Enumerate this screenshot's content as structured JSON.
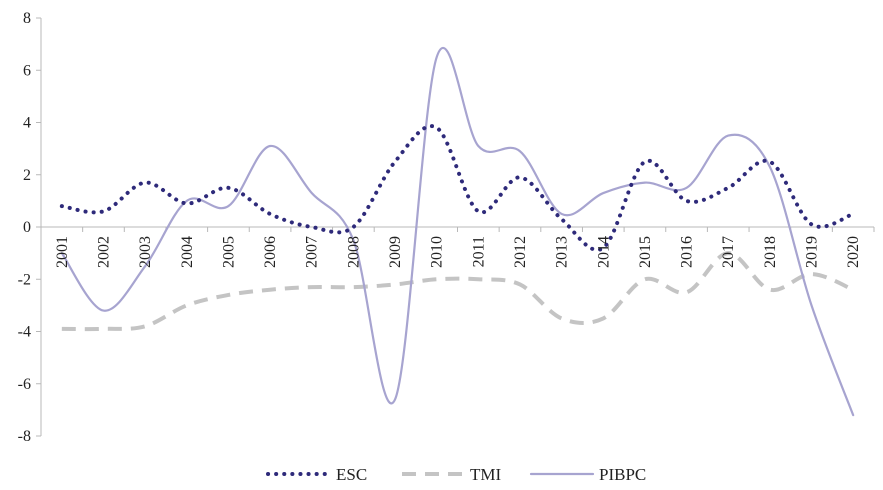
{
  "chart_data": {
    "type": "line",
    "categories": [
      "2001",
      "2002",
      "2003",
      "2004",
      "2005",
      "2006",
      "2007",
      "2008",
      "2009",
      "2010",
      "2011",
      "2012",
      "2013",
      "2014",
      "2015",
      "2016",
      "2017",
      "2018",
      "2019",
      "2020"
    ],
    "ylim": [
      -8,
      8
    ],
    "yticks": [
      -8,
      -6,
      -4,
      -2,
      0,
      2,
      4,
      6,
      8
    ],
    "grid": false,
    "legend_position": "bottom",
    "series": [
      {
        "name": "ESC",
        "style": "dotted",
        "color": "#2e2a7a",
        "values": [
          0.8,
          0.6,
          1.7,
          0.9,
          1.5,
          0.5,
          0.0,
          0.0,
          2.5,
          3.8,
          0.6,
          1.9,
          0.3,
          -0.8,
          2.5,
          1.0,
          1.5,
          2.5,
          0.1,
          0.5
        ]
      },
      {
        "name": "TMI",
        "style": "dashed",
        "color": "#c4c4c4",
        "values": [
          -3.9,
          -3.9,
          -3.8,
          -3.0,
          -2.6,
          -2.4,
          -2.3,
          -2.3,
          -2.2,
          -2.0,
          -2.0,
          -2.2,
          -3.5,
          -3.5,
          -2.0,
          -2.5,
          -1.0,
          -2.4,
          -1.8,
          -2.4
        ]
      },
      {
        "name": "PIBPC",
        "style": "solid",
        "color": "#a7a4d0",
        "values": [
          -1.0,
          -3.2,
          -1.5,
          1.0,
          0.8,
          3.1,
          1.3,
          -0.5,
          -6.6,
          6.5,
          3.1,
          2.9,
          0.5,
          1.3,
          1.7,
          1.5,
          3.5,
          2.3,
          -3.0,
          -7.2
        ]
      }
    ]
  }
}
